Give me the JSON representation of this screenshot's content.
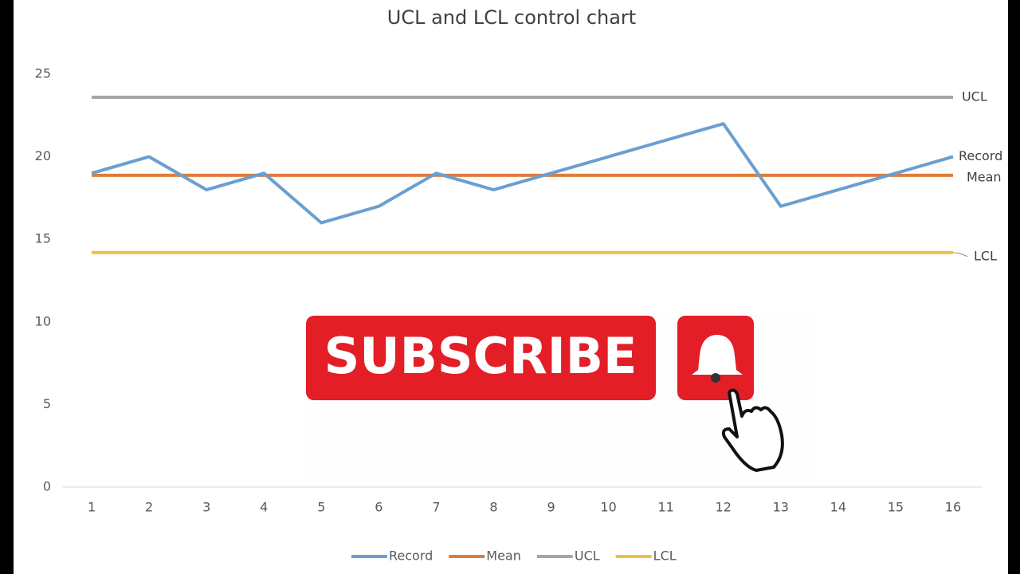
{
  "chart_data": {
    "type": "line",
    "title": "UCL and LCL control chart",
    "categories": [
      "1",
      "2",
      "3",
      "4",
      "5",
      "6",
      "7",
      "8",
      "9",
      "10",
      "11",
      "12",
      "13",
      "14",
      "15",
      "16"
    ],
    "series": [
      {
        "name": "Record",
        "color": "#6a9fd0",
        "values": [
          19,
          20,
          18,
          19,
          16,
          17,
          19,
          18,
          19,
          20,
          21,
          22,
          17,
          18,
          19,
          20
        ]
      },
      {
        "name": "Mean",
        "color": "#e07b39",
        "values": [
          18.875,
          18.875,
          18.875,
          18.875,
          18.875,
          18.875,
          18.875,
          18.875,
          18.875,
          18.875,
          18.875,
          18.875,
          18.875,
          18.875,
          18.875,
          18.875
        ]
      },
      {
        "name": "UCL",
        "color": "#a5a5a5",
        "values": [
          23.6,
          23.6,
          23.6,
          23.6,
          23.6,
          23.6,
          23.6,
          23.6,
          23.6,
          23.6,
          23.6,
          23.6,
          23.6,
          23.6,
          23.6,
          23.6
        ]
      },
      {
        "name": "LCL",
        "color": "#f2c040",
        "values": [
          14.2,
          14.2,
          14.2,
          14.2,
          14.2,
          14.2,
          14.2,
          14.2,
          14.2,
          14.2,
          14.2,
          14.2,
          14.2,
          14.2,
          14.2,
          14.2
        ]
      }
    ],
    "ylim": [
      0,
      25
    ],
    "yticks": [
      0,
      5,
      10,
      15,
      20,
      25
    ],
    "grid": false,
    "legend": "bottom"
  },
  "overlay": {
    "button": "SUBSCRIBE"
  }
}
